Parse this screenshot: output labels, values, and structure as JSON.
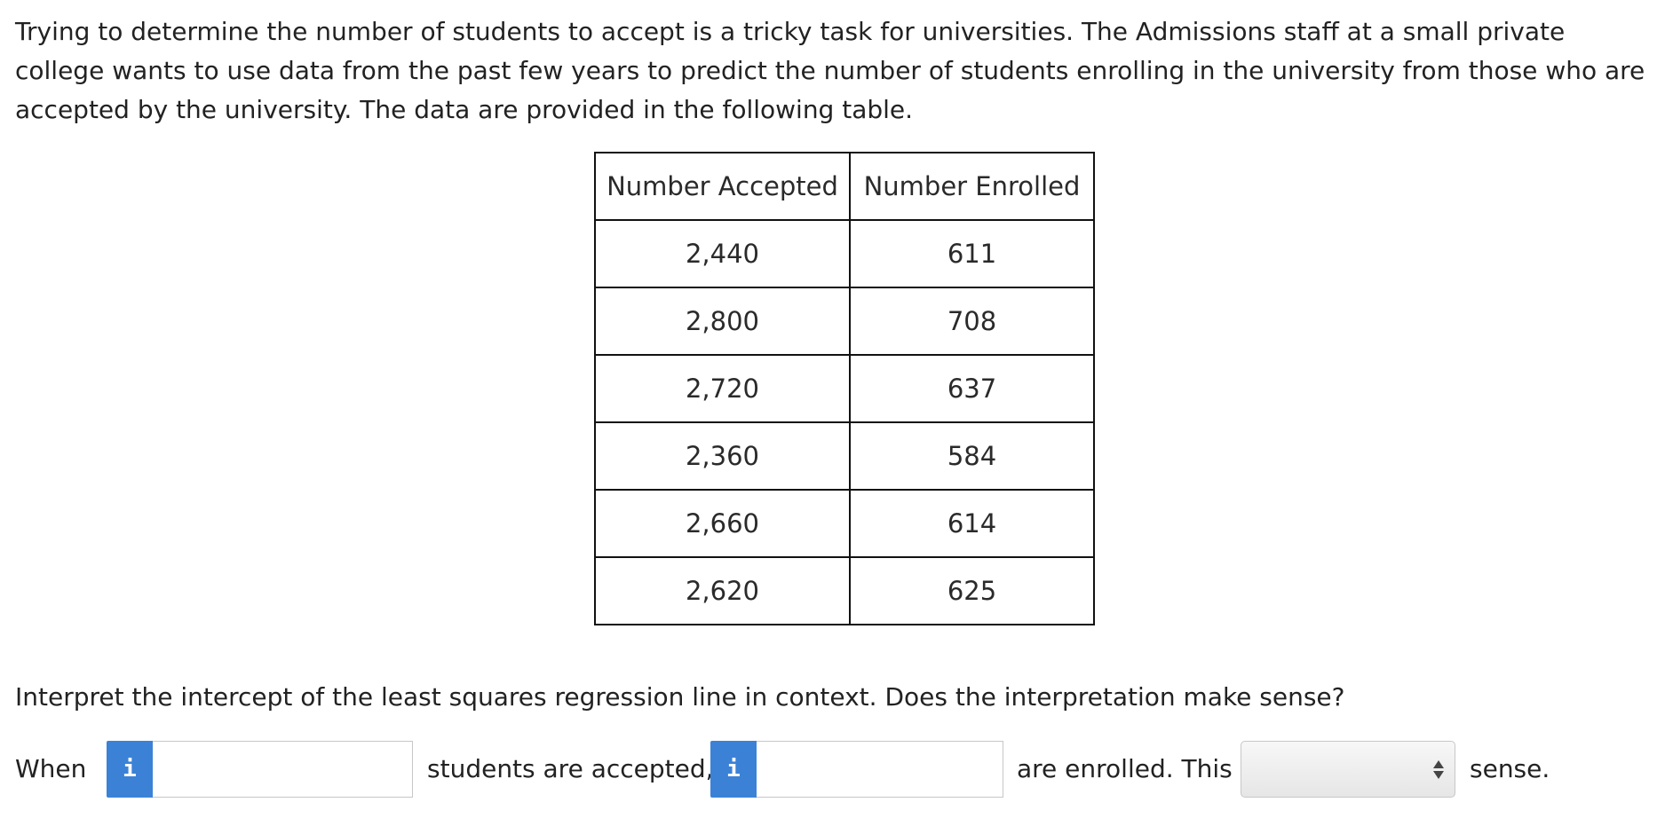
{
  "intro": "Trying to determine the number of students to accept is a tricky task for universities. The Admissions staff at a small private college wants to use data from the past few years to predict the number of students enrolling in the university from those who are accepted by the university. The data are provided in the following table.",
  "table": {
    "headers": [
      "Number Accepted",
      "Number Enrolled"
    ],
    "rows": [
      [
        "2,440",
        "611"
      ],
      [
        "2,800",
        "708"
      ],
      [
        "2,720",
        "637"
      ],
      [
        "2,360",
        "584"
      ],
      [
        "2,660",
        "614"
      ],
      [
        "2,620",
        "625"
      ]
    ]
  },
  "question": "Interpret the intercept of the least squares regression line in context. Does the interpretation make sense?",
  "answer_row": {
    "text_when": "When",
    "text_accepted": "students are accepted,",
    "text_enrolled_this": "are enrolled. This",
    "text_sense": "sense.",
    "info_icon_glyph": "i",
    "input_accepted_value": "",
    "input_enrolled_value": "",
    "select_value": ""
  },
  "colors": {
    "info_button": "#3b82d6",
    "input_border": "#c7c7c7"
  }
}
